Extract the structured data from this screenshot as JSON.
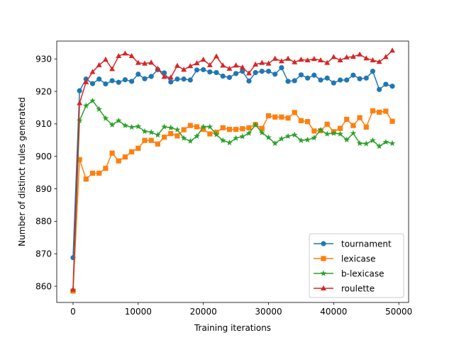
{
  "chart_data": {
    "type": "line",
    "title": "",
    "xlabel": "Training iterations",
    "ylabel": "Number of distinct rules generated",
    "xlim": [
      -2500,
      51500
    ],
    "ylim": [
      855,
      935.5
    ],
    "xticks": [
      0,
      10000,
      20000,
      30000,
      40000,
      50000
    ],
    "yticks": [
      860,
      870,
      880,
      890,
      900,
      910,
      920,
      930
    ],
    "legend_position": "lower-right",
    "x": [
      0,
      1000,
      2000,
      3000,
      4000,
      5000,
      6000,
      7000,
      8000,
      9000,
      10000,
      11000,
      12000,
      13000,
      14000,
      15000,
      16000,
      17000,
      18000,
      19000,
      20000,
      21000,
      22000,
      23000,
      24000,
      25000,
      26000,
      27000,
      28000,
      29000,
      30000,
      31000,
      32000,
      33000,
      34000,
      35000,
      36000,
      37000,
      38000,
      39000,
      40000,
      41000,
      42000,
      43000,
      44000,
      45000,
      46000,
      47000,
      48000,
      49000
    ],
    "series": [
      {
        "name": "tournament",
        "color": "#1f77b4",
        "marker": "circle",
        "values": [
          868.8,
          920.2,
          923.8,
          922.4,
          923.8,
          922.3,
          923.3,
          922.8,
          923.6,
          923.1,
          925.3,
          923.9,
          924.6,
          926.7,
          925.7,
          922.9,
          923.8,
          923.8,
          923.5,
          926.6,
          926.7,
          926.0,
          925.8,
          924.7,
          924.3,
          925.5,
          926.2,
          923.2,
          925.8,
          926.2,
          926.2,
          925.3,
          927.3,
          923.1,
          923.3,
          925.1,
          924.1,
          925.0,
          923.5,
          924.1,
          922.6,
          923.5,
          923.5,
          925.0,
          923.9,
          924.1,
          926.2,
          920.6,
          922.2,
          921.6
        ]
      },
      {
        "name": "lexicase",
        "color": "#ff7f0e",
        "marker": "square",
        "values": [
          858.5,
          899.0,
          893.0,
          894.8,
          894.8,
          896.3,
          901.0,
          898.6,
          899.8,
          901.4,
          902.5,
          904.9,
          904.9,
          903.8,
          905.9,
          907.0,
          906.3,
          908.2,
          909.5,
          909.1,
          908.3,
          906.9,
          907.4,
          908.8,
          908.3,
          908.3,
          908.5,
          908.8,
          909.8,
          908.6,
          912.5,
          912.1,
          912.1,
          911.8,
          913.5,
          911.0,
          910.7,
          907.8,
          907.9,
          909.9,
          907.6,
          908.6,
          911.4,
          909.5,
          911.9,
          909.0,
          914.0,
          913.6,
          913.9,
          910.8
        ]
      },
      {
        "name": "b-lexicase",
        "color": "#2ca02c",
        "marker": "star",
        "values": [
          858.8,
          911.0,
          915.6,
          917.1,
          914.5,
          911.7,
          909.7,
          911.0,
          909.5,
          909.0,
          909.2,
          907.7,
          907.4,
          906.6,
          909.1,
          908.8,
          908.2,
          905.6,
          904.7,
          906.2,
          909.1,
          909.1,
          906.7,
          904.9,
          904.2,
          905.6,
          906.1,
          907.1,
          909.7,
          907.3,
          905.8,
          904.0,
          905.4,
          906.2,
          906.6,
          904.9,
          905.1,
          905.7,
          908.1,
          906.9,
          907.1,
          906.9,
          905.1,
          907.1,
          904.0,
          903.9,
          904.9,
          903.1,
          904.4,
          904.0
        ]
      },
      {
        "name": "roulette",
        "color": "#d62728",
        "marker": "triangle",
        "values": [
          859.0,
          916.4,
          922.9,
          926.0,
          928.1,
          929.8,
          926.9,
          930.9,
          931.7,
          930.9,
          928.8,
          928.6,
          928.9,
          927.0,
          924.5,
          924.3,
          927.9,
          926.7,
          927.8,
          928.7,
          929.8,
          928.1,
          930.8,
          928.0,
          927.0,
          928.0,
          927.4,
          925.6,
          928.3,
          928.8,
          928.6,
          930.1,
          929.3,
          930.1,
          929.0,
          929.8,
          929.6,
          930.0,
          929.6,
          928.8,
          930.6,
          929.6,
          930.5,
          930.7,
          931.4,
          930.2,
          929.6,
          929.1,
          930.6,
          932.6
        ]
      }
    ]
  }
}
